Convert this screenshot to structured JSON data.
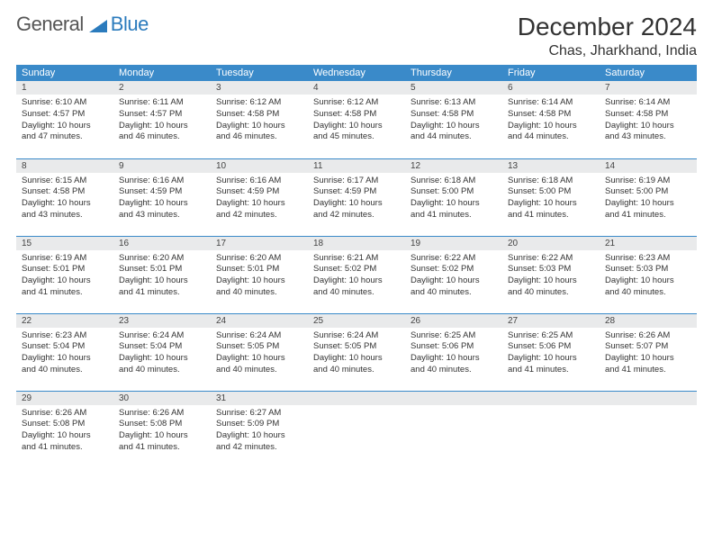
{
  "logo": {
    "general": "General",
    "blue": "Blue"
  },
  "title": "December 2024",
  "location": "Chas, Jharkhand, India",
  "colors": {
    "header_bg": "#3a8ac9",
    "header_text": "#ffffff",
    "daynum_bg": "#e9eaeb",
    "row_divider": "#3a8ac9",
    "logo_blue": "#2b7bbd",
    "logo_gray": "#555555"
  },
  "weekdays": [
    "Sunday",
    "Monday",
    "Tuesday",
    "Wednesday",
    "Thursday",
    "Friday",
    "Saturday"
  ],
  "weeks": [
    [
      {
        "day": "1",
        "sunrise": "Sunrise: 6:10 AM",
        "sunset": "Sunset: 4:57 PM",
        "daylight1": "Daylight: 10 hours",
        "daylight2": "and 47 minutes."
      },
      {
        "day": "2",
        "sunrise": "Sunrise: 6:11 AM",
        "sunset": "Sunset: 4:57 PM",
        "daylight1": "Daylight: 10 hours",
        "daylight2": "and 46 minutes."
      },
      {
        "day": "3",
        "sunrise": "Sunrise: 6:12 AM",
        "sunset": "Sunset: 4:58 PM",
        "daylight1": "Daylight: 10 hours",
        "daylight2": "and 46 minutes."
      },
      {
        "day": "4",
        "sunrise": "Sunrise: 6:12 AM",
        "sunset": "Sunset: 4:58 PM",
        "daylight1": "Daylight: 10 hours",
        "daylight2": "and 45 minutes."
      },
      {
        "day": "5",
        "sunrise": "Sunrise: 6:13 AM",
        "sunset": "Sunset: 4:58 PM",
        "daylight1": "Daylight: 10 hours",
        "daylight2": "and 44 minutes."
      },
      {
        "day": "6",
        "sunrise": "Sunrise: 6:14 AM",
        "sunset": "Sunset: 4:58 PM",
        "daylight1": "Daylight: 10 hours",
        "daylight2": "and 44 minutes."
      },
      {
        "day": "7",
        "sunrise": "Sunrise: 6:14 AM",
        "sunset": "Sunset: 4:58 PM",
        "daylight1": "Daylight: 10 hours",
        "daylight2": "and 43 minutes."
      }
    ],
    [
      {
        "day": "8",
        "sunrise": "Sunrise: 6:15 AM",
        "sunset": "Sunset: 4:58 PM",
        "daylight1": "Daylight: 10 hours",
        "daylight2": "and 43 minutes."
      },
      {
        "day": "9",
        "sunrise": "Sunrise: 6:16 AM",
        "sunset": "Sunset: 4:59 PM",
        "daylight1": "Daylight: 10 hours",
        "daylight2": "and 43 minutes."
      },
      {
        "day": "10",
        "sunrise": "Sunrise: 6:16 AM",
        "sunset": "Sunset: 4:59 PM",
        "daylight1": "Daylight: 10 hours",
        "daylight2": "and 42 minutes."
      },
      {
        "day": "11",
        "sunrise": "Sunrise: 6:17 AM",
        "sunset": "Sunset: 4:59 PM",
        "daylight1": "Daylight: 10 hours",
        "daylight2": "and 42 minutes."
      },
      {
        "day": "12",
        "sunrise": "Sunrise: 6:18 AM",
        "sunset": "Sunset: 5:00 PM",
        "daylight1": "Daylight: 10 hours",
        "daylight2": "and 41 minutes."
      },
      {
        "day": "13",
        "sunrise": "Sunrise: 6:18 AM",
        "sunset": "Sunset: 5:00 PM",
        "daylight1": "Daylight: 10 hours",
        "daylight2": "and 41 minutes."
      },
      {
        "day": "14",
        "sunrise": "Sunrise: 6:19 AM",
        "sunset": "Sunset: 5:00 PM",
        "daylight1": "Daylight: 10 hours",
        "daylight2": "and 41 minutes."
      }
    ],
    [
      {
        "day": "15",
        "sunrise": "Sunrise: 6:19 AM",
        "sunset": "Sunset: 5:01 PM",
        "daylight1": "Daylight: 10 hours",
        "daylight2": "and 41 minutes."
      },
      {
        "day": "16",
        "sunrise": "Sunrise: 6:20 AM",
        "sunset": "Sunset: 5:01 PM",
        "daylight1": "Daylight: 10 hours",
        "daylight2": "and 41 minutes."
      },
      {
        "day": "17",
        "sunrise": "Sunrise: 6:20 AM",
        "sunset": "Sunset: 5:01 PM",
        "daylight1": "Daylight: 10 hours",
        "daylight2": "and 40 minutes."
      },
      {
        "day": "18",
        "sunrise": "Sunrise: 6:21 AM",
        "sunset": "Sunset: 5:02 PM",
        "daylight1": "Daylight: 10 hours",
        "daylight2": "and 40 minutes."
      },
      {
        "day": "19",
        "sunrise": "Sunrise: 6:22 AM",
        "sunset": "Sunset: 5:02 PM",
        "daylight1": "Daylight: 10 hours",
        "daylight2": "and 40 minutes."
      },
      {
        "day": "20",
        "sunrise": "Sunrise: 6:22 AM",
        "sunset": "Sunset: 5:03 PM",
        "daylight1": "Daylight: 10 hours",
        "daylight2": "and 40 minutes."
      },
      {
        "day": "21",
        "sunrise": "Sunrise: 6:23 AM",
        "sunset": "Sunset: 5:03 PM",
        "daylight1": "Daylight: 10 hours",
        "daylight2": "and 40 minutes."
      }
    ],
    [
      {
        "day": "22",
        "sunrise": "Sunrise: 6:23 AM",
        "sunset": "Sunset: 5:04 PM",
        "daylight1": "Daylight: 10 hours",
        "daylight2": "and 40 minutes."
      },
      {
        "day": "23",
        "sunrise": "Sunrise: 6:24 AM",
        "sunset": "Sunset: 5:04 PM",
        "daylight1": "Daylight: 10 hours",
        "daylight2": "and 40 minutes."
      },
      {
        "day": "24",
        "sunrise": "Sunrise: 6:24 AM",
        "sunset": "Sunset: 5:05 PM",
        "daylight1": "Daylight: 10 hours",
        "daylight2": "and 40 minutes."
      },
      {
        "day": "25",
        "sunrise": "Sunrise: 6:24 AM",
        "sunset": "Sunset: 5:05 PM",
        "daylight1": "Daylight: 10 hours",
        "daylight2": "and 40 minutes."
      },
      {
        "day": "26",
        "sunrise": "Sunrise: 6:25 AM",
        "sunset": "Sunset: 5:06 PM",
        "daylight1": "Daylight: 10 hours",
        "daylight2": "and 40 minutes."
      },
      {
        "day": "27",
        "sunrise": "Sunrise: 6:25 AM",
        "sunset": "Sunset: 5:06 PM",
        "daylight1": "Daylight: 10 hours",
        "daylight2": "and 41 minutes."
      },
      {
        "day": "28",
        "sunrise": "Sunrise: 6:26 AM",
        "sunset": "Sunset: 5:07 PM",
        "daylight1": "Daylight: 10 hours",
        "daylight2": "and 41 minutes."
      }
    ],
    [
      {
        "day": "29",
        "sunrise": "Sunrise: 6:26 AM",
        "sunset": "Sunset: 5:08 PM",
        "daylight1": "Daylight: 10 hours",
        "daylight2": "and 41 minutes."
      },
      {
        "day": "30",
        "sunrise": "Sunrise: 6:26 AM",
        "sunset": "Sunset: 5:08 PM",
        "daylight1": "Daylight: 10 hours",
        "daylight2": "and 41 minutes."
      },
      {
        "day": "31",
        "sunrise": "Sunrise: 6:27 AM",
        "sunset": "Sunset: 5:09 PM",
        "daylight1": "Daylight: 10 hours",
        "daylight2": "and 42 minutes."
      },
      {
        "day": "",
        "empty": true
      },
      {
        "day": "",
        "empty": true
      },
      {
        "day": "",
        "empty": true
      },
      {
        "day": "",
        "empty": true
      }
    ]
  ]
}
